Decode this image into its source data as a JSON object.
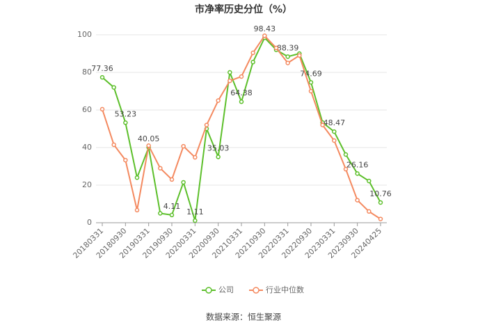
{
  "chart_data": {
    "type": "line",
    "title": "市净率历史分位（%）",
    "categories": [
      "20180331",
      null,
      "20180930",
      null,
      "20190331",
      null,
      "20190930",
      null,
      "20200331",
      null,
      "20200930",
      null,
      "20210331",
      null,
      "20210930",
      null,
      "20220331",
      null,
      "20220930",
      null,
      "20230331",
      null,
      "20230930",
      null,
      "20240425"
    ],
    "series": [
      {
        "name": "公司",
        "color": "#5cbf2a",
        "values": [
          77.36,
          72,
          53.23,
          24,
          40.05,
          5,
          4.11,
          21.5,
          1.11,
          50,
          35.03,
          80,
          64.38,
          85.5,
          98.43,
          92,
          88.39,
          90,
          74.69,
          53.3,
          48.47,
          36.3,
          26.16,
          22.2,
          10.76
        ],
        "value_labels": [
          "77.36",
          null,
          "53.23",
          null,
          "40.05",
          null,
          "4.11",
          null,
          "1.11",
          null,
          "35.03",
          null,
          "64.38",
          null,
          "98.43",
          null,
          "88.39",
          null,
          "74.69",
          null,
          "48.47",
          null,
          "26.16",
          null,
          "10.76"
        ]
      },
      {
        "name": "行业中位数",
        "color": "#f4895f",
        "values": [
          60.4,
          41.5,
          33.3,
          6.7,
          41,
          29,
          23,
          40.7,
          34.8,
          52,
          65,
          75.5,
          77.8,
          90.4,
          99.5,
          93,
          85,
          89,
          70,
          52,
          43.7,
          28.5,
          12,
          6,
          2
        ]
      }
    ],
    "ylim": [
      0,
      100
    ],
    "yticks": [
      0,
      20,
      40,
      60,
      80,
      100
    ],
    "grid": true,
    "source": "数据来源：恒生聚源"
  }
}
